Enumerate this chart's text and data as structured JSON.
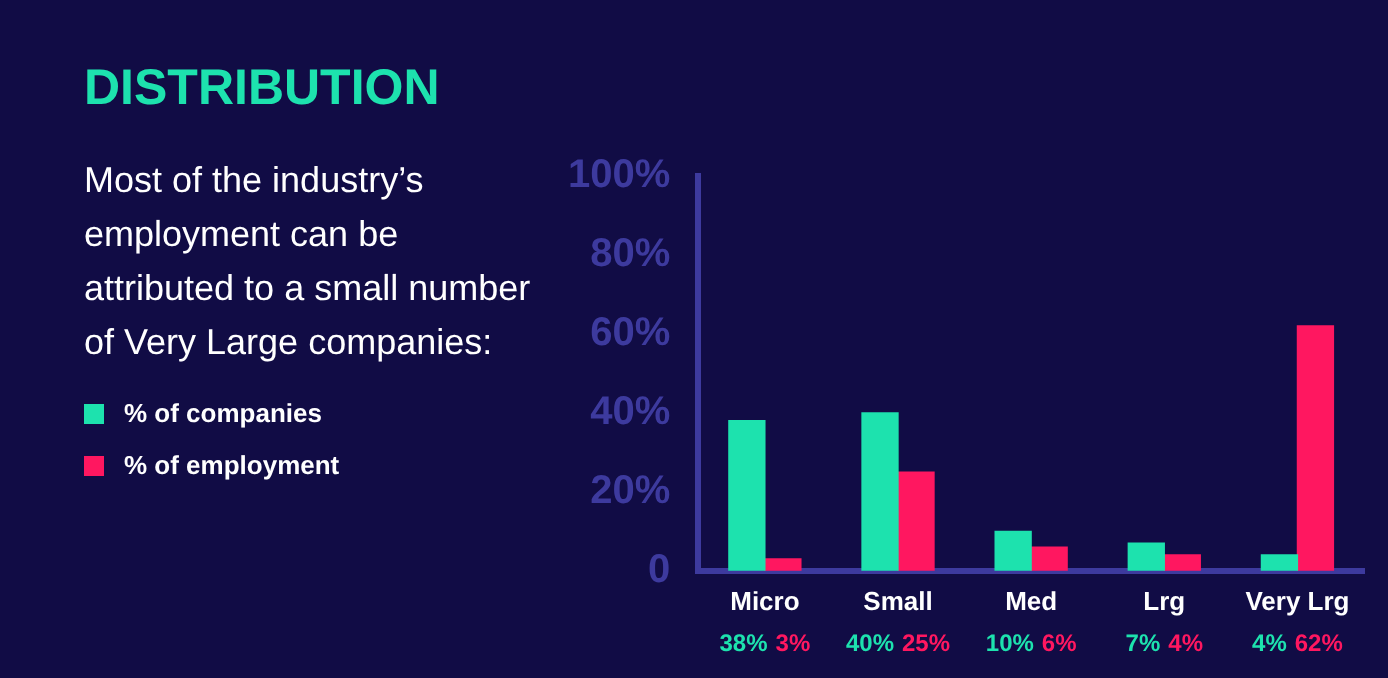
{
  "chart_data": {
    "type": "bar",
    "title": "DISTRIBUTION",
    "subtitle": "Most of the industry’s employment can be attributed to a small number of Very Large companies:",
    "categories": [
      "Micro",
      "Small",
      "Med",
      "Lrg",
      "Very Lrg"
    ],
    "series": [
      {
        "name": "% of companies",
        "color": "#1de2ae",
        "values": [
          38,
          40,
          10,
          7,
          4
        ],
        "value_labels": [
          "38%",
          "40%",
          "10%",
          "7%",
          "4%"
        ]
      },
      {
        "name": "% of employment",
        "color": "#ff1760",
        "values": [
          3,
          25,
          6,
          4,
          62
        ],
        "value_labels": [
          "3%",
          "25%",
          "6%",
          "4%",
          "62%"
        ]
      }
    ],
    "ylim": [
      0,
      100
    ],
    "yticks": [
      {
        "value": 0,
        "label": "0"
      },
      {
        "value": 20,
        "label": "20%"
      },
      {
        "value": 40,
        "label": "40%"
      },
      {
        "value": 60,
        "label": "60%"
      },
      {
        "value": 80,
        "label": "80%"
      },
      {
        "value": 100,
        "label": "100%"
      }
    ],
    "grid": false,
    "legend": "left"
  }
}
